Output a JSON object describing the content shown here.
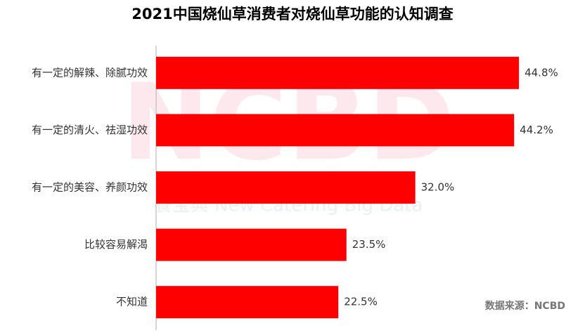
{
  "chart_data": {
    "type": "bar",
    "orientation": "horizontal",
    "title": "2021中国烧仙草消费者对烧仙草功能的认知调查",
    "categories": [
      "有一定的解辣、除腻功效",
      "有一定的清火、祛湿功效",
      "有一定的美容、养颜功效",
      "比较容易解渴",
      "不知道"
    ],
    "values": [
      44.8,
      44.2,
      32.0,
      23.5,
      22.5
    ],
    "value_labels": [
      "44.8%",
      "44.2%",
      "32.0%",
      "23.5%",
      "22.5%"
    ],
    "color": "#ff0000",
    "xlim": [
      0,
      50
    ],
    "source": "数据来源：NCBD",
    "watermark": [
      "NCBD",
      "餐宝典 New Catering Big Data"
    ]
  }
}
